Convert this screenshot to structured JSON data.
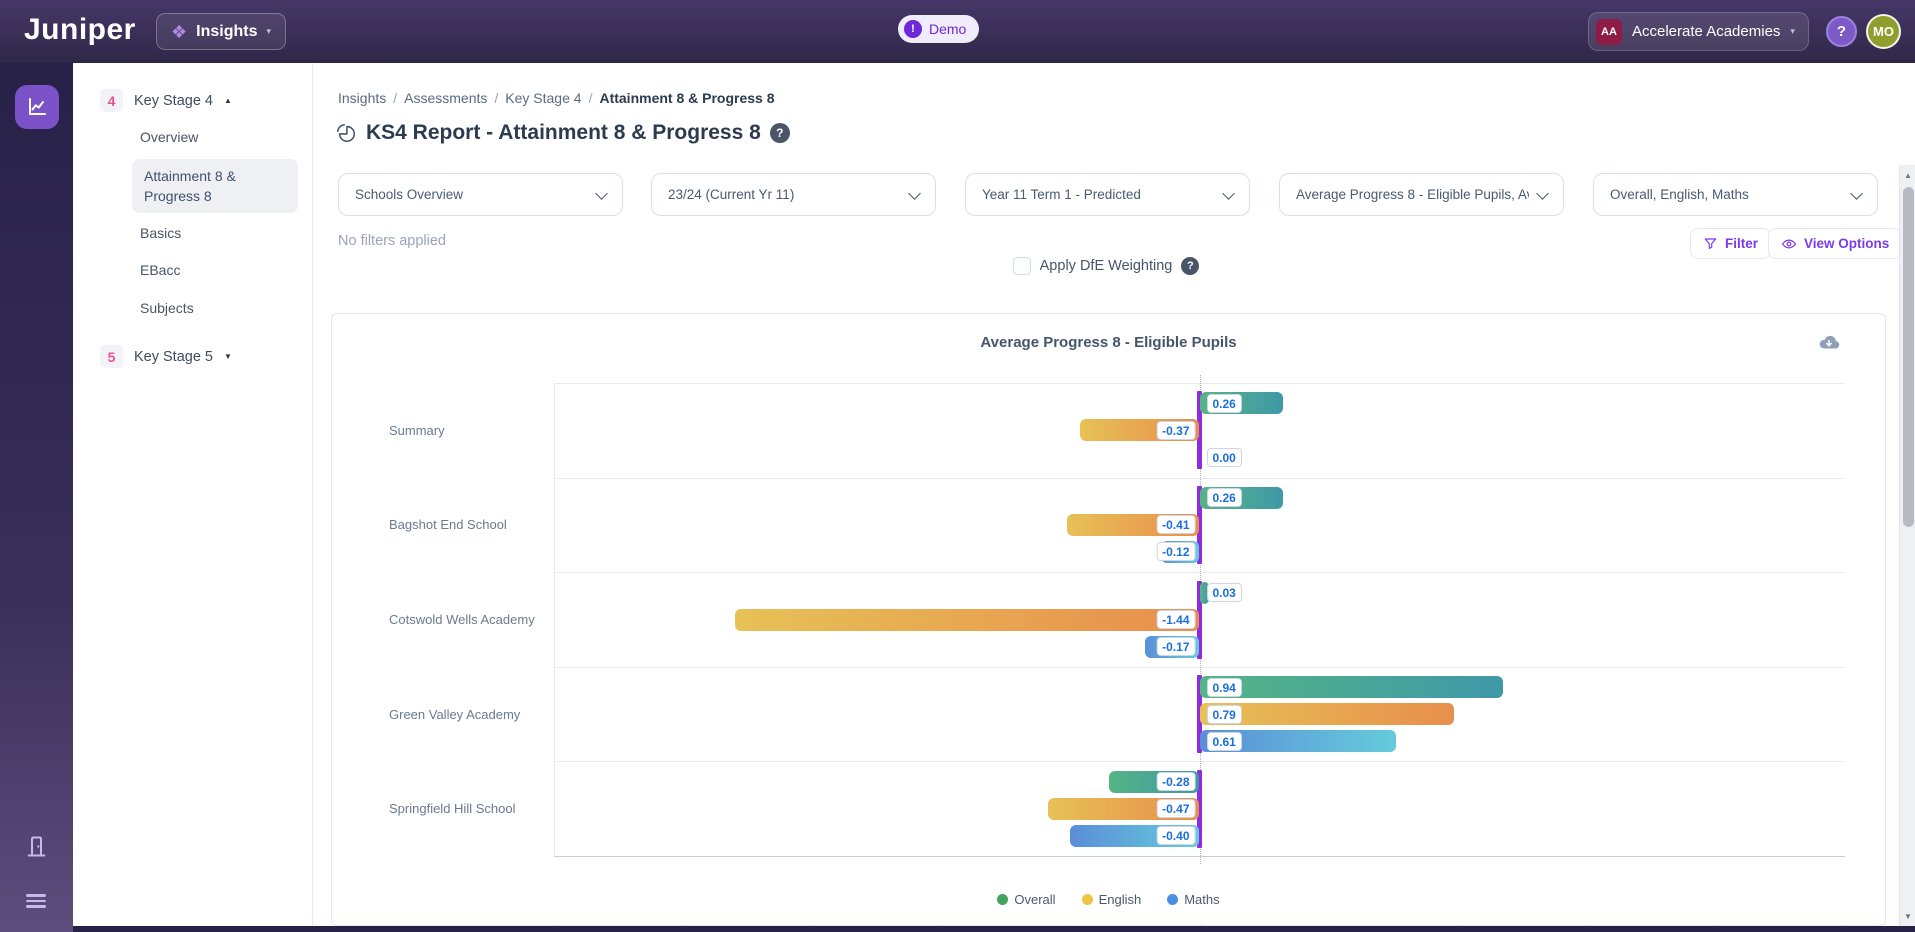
{
  "topbar": {
    "logo": "Juniper",
    "app_switcher_label": "Insights",
    "demo_label": "Demo",
    "demo_icon_glyph": "!",
    "org_initials": "AA",
    "org_label": "Accelerate Academies",
    "help_glyph": "?",
    "avatar_initials": "MO"
  },
  "sidebar": {
    "sections": [
      {
        "badge": "4",
        "label": "Key Stage 4",
        "expanded": true,
        "items": [
          {
            "label": "Overview",
            "selected": false
          },
          {
            "label": "Attainment 8 & Progress 8",
            "selected": true
          },
          {
            "label": "Basics",
            "selected": false
          },
          {
            "label": "EBacc",
            "selected": false
          },
          {
            "label": "Subjects",
            "selected": false
          }
        ]
      },
      {
        "badge": "5",
        "label": "Key Stage 5",
        "expanded": false,
        "items": []
      }
    ]
  },
  "breadcrumb": [
    "Insights",
    "Assessments",
    "Key Stage 4",
    "Attainment 8 & Progress 8"
  ],
  "page": {
    "title": "KS4 Report - Attainment 8 & Progress 8"
  },
  "filters": {
    "dropdowns": [
      "Schools Overview",
      "23/24 (Current Yr 11)",
      "Year 11 Term 1 - Predicted",
      "Average Progress 8 - Eligible Pupils, Av",
      "Overall, English, Maths"
    ],
    "no_filters_text": "No filters applied",
    "filter_button": "Filter",
    "view_options_button": "View Options",
    "dfe_checkbox_label": "Apply DfE Weighting",
    "dfe_checked": false
  },
  "theme": {
    "accent_purple": "#7c3aed",
    "topbar_purple": "#3a2f57",
    "badge_pink": "#e8538f",
    "value_label_blue": "#1a6ee0",
    "zero_marker_purple": "#8f2be0"
  },
  "chart_data": {
    "type": "bar",
    "orientation": "horizontal",
    "title": "Average Progress 8 - Eligible Pupils",
    "categories": [
      "Summary",
      "Bagshot End School",
      "Cotswold Wells Academy",
      "Green Valley Academy",
      "Springfield Hill School"
    ],
    "series": [
      {
        "name": "Overall",
        "values": [
          0.26,
          0.26,
          0.03,
          0.94,
          -0.28
        ],
        "color_start": "#55b585",
        "color_end": "#3f98a8",
        "legend_color": "#3fa45f"
      },
      {
        "name": "English",
        "values": [
          -0.37,
          -0.41,
          -1.44,
          0.79,
          -0.47
        ],
        "color_start": "#e7c156",
        "color_end": "#e88e4d",
        "legend_color": "#eec643"
      },
      {
        "name": "Maths",
        "values": [
          0.0,
          -0.12,
          -0.17,
          0.61,
          -0.4
        ],
        "color_start": "#5b8ed8",
        "color_end": "#65cbdb",
        "legend_color": "#4a90e2"
      }
    ],
    "xlim": [
      -2.0,
      2.0
    ],
    "xticks": [
      -2.0,
      -1.6,
      -1.2,
      -0.8,
      -0.4,
      0.0,
      0.4,
      0.8,
      1.2,
      1.6,
      2.0
    ],
    "tick_labels": [
      "-2.0",
      "-1.6",
      "-1.2",
      "-0.8",
      "-0.4",
      "-0.0",
      "0.4",
      "0.8",
      "1.2",
      "1.6",
      "2.0"
    ],
    "grid": "horizontal-row-separators",
    "legend_position": "bottom"
  }
}
